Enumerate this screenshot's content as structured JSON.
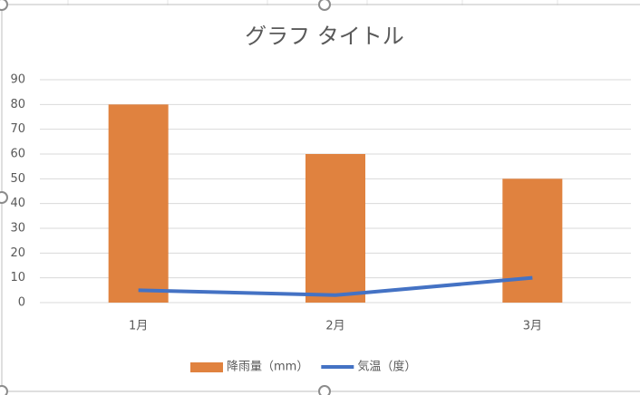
{
  "chart_data": {
    "type": "combo",
    "title": "グラフ タイトル",
    "categories": [
      "1月",
      "2月",
      "3月"
    ],
    "series": [
      {
        "name": "降雨量（mm）",
        "type": "bar",
        "color": "#e0823f",
        "values": [
          80,
          60,
          50
        ]
      },
      {
        "name": "気温（度）",
        "type": "line",
        "color": "#4472c4",
        "values": [
          5,
          3,
          10
        ]
      }
    ],
    "ylim": [
      0,
      90
    ],
    "yticks": [
      0,
      10,
      20,
      30,
      40,
      50,
      60,
      70,
      80,
      90
    ],
    "grid": true,
    "legend": "bottom"
  }
}
